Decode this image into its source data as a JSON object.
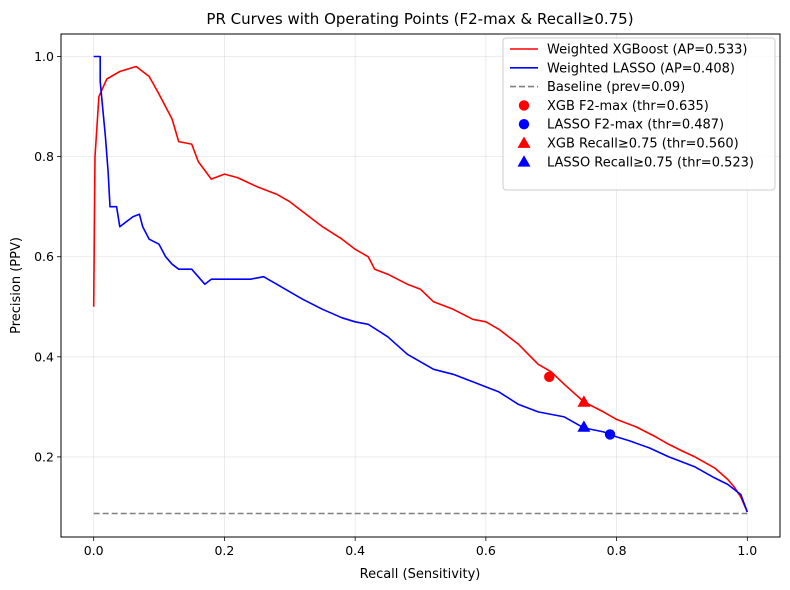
{
  "chart_data": {
    "type": "line",
    "title": "PR Curves with Operating Points (F2-max & Recall≥0.75)",
    "xlabel": "Recall (Sensitivity)",
    "ylabel": "Precision (PPV)",
    "xlim": [
      -0.05,
      1.05
    ],
    "ylim": [
      0.04,
      1.045
    ],
    "xticks": [
      0.0,
      0.2,
      0.4,
      0.6,
      0.8,
      1.0
    ],
    "xtick_labels": [
      "0.0",
      "0.2",
      "0.4",
      "0.6",
      "0.8",
      "1.0"
    ],
    "yticks": [
      0.2,
      0.4,
      0.6,
      0.8,
      1.0
    ],
    "ytick_labels": [
      "0.2",
      "0.4",
      "0.6",
      "0.8",
      "1.0"
    ],
    "grid": true,
    "legend_position": "top-right",
    "series": [
      {
        "name": "Weighted XGBoost (AP=0.533)",
        "color": "#ff0000",
        "style": "solid",
        "points": [
          [
            0.0,
            0.5
          ],
          [
            0.002,
            0.8
          ],
          [
            0.008,
            0.92
          ],
          [
            0.02,
            0.955
          ],
          [
            0.04,
            0.97
          ],
          [
            0.065,
            0.98
          ],
          [
            0.07,
            0.975
          ],
          [
            0.085,
            0.96
          ],
          [
            0.1,
            0.925
          ],
          [
            0.12,
            0.875
          ],
          [
            0.13,
            0.83
          ],
          [
            0.15,
            0.825
          ],
          [
            0.16,
            0.79
          ],
          [
            0.18,
            0.755
          ],
          [
            0.2,
            0.765
          ],
          [
            0.22,
            0.758
          ],
          [
            0.25,
            0.74
          ],
          [
            0.28,
            0.725
          ],
          [
            0.3,
            0.71
          ],
          [
            0.32,
            0.69
          ],
          [
            0.35,
            0.66
          ],
          [
            0.38,
            0.635
          ],
          [
            0.4,
            0.615
          ],
          [
            0.42,
            0.6
          ],
          [
            0.43,
            0.575
          ],
          [
            0.45,
            0.565
          ],
          [
            0.48,
            0.545
          ],
          [
            0.5,
            0.535
          ],
          [
            0.52,
            0.51
          ],
          [
            0.55,
            0.495
          ],
          [
            0.58,
            0.475
          ],
          [
            0.6,
            0.47
          ],
          [
            0.62,
            0.455
          ],
          [
            0.65,
            0.425
          ],
          [
            0.68,
            0.385
          ],
          [
            0.7,
            0.37
          ],
          [
            0.72,
            0.345
          ],
          [
            0.75,
            0.31
          ],
          [
            0.78,
            0.29
          ],
          [
            0.8,
            0.275
          ],
          [
            0.83,
            0.26
          ],
          [
            0.86,
            0.24
          ],
          [
            0.88,
            0.225
          ],
          [
            0.9,
            0.212
          ],
          [
            0.92,
            0.2
          ],
          [
            0.95,
            0.178
          ],
          [
            0.97,
            0.155
          ],
          [
            0.98,
            0.14
          ],
          [
            0.99,
            0.12
          ],
          [
            1.0,
            0.09
          ]
        ]
      },
      {
        "name": "Weighted LASSO (AP=0.408)",
        "color": "#0000ff",
        "style": "solid",
        "points": [
          [
            0.0,
            1.0
          ],
          [
            0.01,
            1.0
          ],
          [
            0.01,
            0.95
          ],
          [
            0.018,
            0.84
          ],
          [
            0.022,
            0.77
          ],
          [
            0.025,
            0.7
          ],
          [
            0.035,
            0.7
          ],
          [
            0.04,
            0.66
          ],
          [
            0.06,
            0.68
          ],
          [
            0.07,
            0.685
          ],
          [
            0.075,
            0.66
          ],
          [
            0.085,
            0.635
          ],
          [
            0.1,
            0.625
          ],
          [
            0.11,
            0.6
          ],
          [
            0.12,
            0.585
          ],
          [
            0.13,
            0.575
          ],
          [
            0.15,
            0.575
          ],
          [
            0.17,
            0.545
          ],
          [
            0.18,
            0.555
          ],
          [
            0.2,
            0.555
          ],
          [
            0.22,
            0.555
          ],
          [
            0.24,
            0.555
          ],
          [
            0.26,
            0.56
          ],
          [
            0.28,
            0.545
          ],
          [
            0.3,
            0.53
          ],
          [
            0.32,
            0.515
          ],
          [
            0.35,
            0.495
          ],
          [
            0.38,
            0.478
          ],
          [
            0.4,
            0.47
          ],
          [
            0.42,
            0.465
          ],
          [
            0.45,
            0.44
          ],
          [
            0.48,
            0.405
          ],
          [
            0.5,
            0.39
          ],
          [
            0.52,
            0.375
          ],
          [
            0.55,
            0.365
          ],
          [
            0.58,
            0.35
          ],
          [
            0.6,
            0.34
          ],
          [
            0.62,
            0.33
          ],
          [
            0.65,
            0.305
          ],
          [
            0.68,
            0.29
          ],
          [
            0.7,
            0.285
          ],
          [
            0.72,
            0.28
          ],
          [
            0.75,
            0.258
          ],
          [
            0.78,
            0.25
          ],
          [
            0.8,
            0.24
          ],
          [
            0.82,
            0.232
          ],
          [
            0.85,
            0.218
          ],
          [
            0.88,
            0.2
          ],
          [
            0.9,
            0.19
          ],
          [
            0.92,
            0.18
          ],
          [
            0.95,
            0.158
          ],
          [
            0.97,
            0.145
          ],
          [
            0.99,
            0.125
          ],
          [
            1.0,
            0.09
          ]
        ]
      },
      {
        "name": "Baseline (prev=0.09)",
        "color": "#808080",
        "style": "dashed",
        "points": [
          [
            0.0,
            0.087
          ],
          [
            1.0,
            0.087
          ]
        ]
      }
    ],
    "markers": [
      {
        "name": "XGB F2-max (thr=0.635)",
        "color": "#ff0000",
        "shape": "circle",
        "x": 0.697,
        "y": 0.36
      },
      {
        "name": "LASSO F2-max (thr=0.487)",
        "color": "#0000ff",
        "shape": "circle",
        "x": 0.79,
        "y": 0.245
      },
      {
        "name": "XGB Recall≥0.75 (thr=0.560)",
        "color": "#ff0000",
        "shape": "triangle",
        "x": 0.75,
        "y": 0.31
      },
      {
        "name": "LASSO Recall≥0.75 (thr=0.523)",
        "color": "#0000ff",
        "shape": "triangle",
        "x": 0.75,
        "y": 0.26
      }
    ]
  }
}
